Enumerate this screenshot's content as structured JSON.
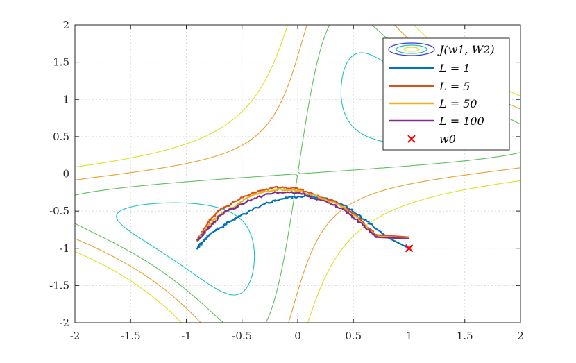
{
  "chart_data": {
    "type": "line",
    "title": "",
    "xlabel": "",
    "ylabel": "",
    "xlim": [
      -2,
      2
    ],
    "ylim": [
      -2,
      2
    ],
    "grid": true,
    "legend_position": "top-right",
    "x_ticks": [
      -2,
      -1.5,
      -1,
      -0.5,
      0,
      0.5,
      1,
      1.5,
      2
    ],
    "y_ticks": [
      -2,
      -1.5,
      -1,
      -0.5,
      0,
      0.5,
      1,
      1.5,
      2
    ],
    "x_tick_labels": [
      "-2",
      "-1.5",
      "-1",
      "-0.5",
      "0",
      "0.5",
      "1",
      "1.5",
      "2"
    ],
    "y_tick_labels": [
      "-2",
      "-1.5",
      "-1",
      "-0.5",
      "0",
      "0.5",
      "1",
      "1.5",
      "2"
    ],
    "contour": {
      "name": "J(w1, W2)",
      "levels": [
        0.12,
        0.3,
        0.6,
        1.0,
        1.5,
        2.2
      ],
      "colors": [
        "#3a3ad6",
        "#2a8ee0",
        "#19c3c0",
        "#5cc05c",
        "#e8a030",
        "#e0e020"
      ]
    },
    "series": [
      {
        "name": "L = 1",
        "color": "#0072BD",
        "x": [
          1.0,
          0.8,
          0.6,
          0.45,
          0.3,
          0.1,
          -0.1,
          -0.3,
          -0.5,
          -0.65,
          -0.78,
          -0.85,
          -0.9
        ],
        "y": [
          -1.0,
          -0.85,
          -0.62,
          -0.45,
          -0.35,
          -0.3,
          -0.32,
          -0.4,
          -0.55,
          -0.68,
          -0.8,
          -0.9,
          -1.0
        ]
      },
      {
        "name": "L = 5",
        "color": "#D95319",
        "x": [
          1.0,
          0.7,
          0.55,
          0.4,
          0.2,
          0.0,
          -0.2,
          -0.4,
          -0.6,
          -0.72,
          -0.8,
          -0.85,
          -0.9
        ],
        "y": [
          -0.85,
          -0.82,
          -0.6,
          -0.42,
          -0.3,
          -0.2,
          -0.18,
          -0.25,
          -0.4,
          -0.5,
          -0.65,
          -0.78,
          -0.88
        ]
      },
      {
        "name": "L = 50",
        "color": "#EDB120",
        "x": [
          1.0,
          0.7,
          0.55,
          0.4,
          0.2,
          0.0,
          -0.2,
          -0.4,
          -0.55,
          -0.7,
          -0.8,
          -0.87,
          -0.9
        ],
        "y": [
          -0.86,
          -0.84,
          -0.62,
          -0.44,
          -0.32,
          -0.22,
          -0.21,
          -0.28,
          -0.42,
          -0.55,
          -0.7,
          -0.82,
          -0.9
        ]
      },
      {
        "name": "L = 100",
        "color": "#7E2F8E",
        "x": [
          1.0,
          0.7,
          0.55,
          0.4,
          0.2,
          0.0,
          -0.2,
          -0.4,
          -0.55,
          -0.65,
          -0.75,
          -0.83,
          -0.9
        ],
        "y": [
          -0.87,
          -0.85,
          -0.64,
          -0.47,
          -0.35,
          -0.25,
          -0.25,
          -0.33,
          -0.45,
          -0.5,
          -0.65,
          -0.78,
          -0.9
        ]
      }
    ],
    "markers": [
      {
        "name": "w_0",
        "x": 1.0,
        "y": -1.0,
        "color": "#FF0000",
        "symbol": "x"
      }
    ],
    "legend": {
      "entries": [
        "J(w1, W2)",
        "L = 1",
        "L = 5",
        "L = 50",
        "L = 100",
        "w0"
      ]
    }
  }
}
